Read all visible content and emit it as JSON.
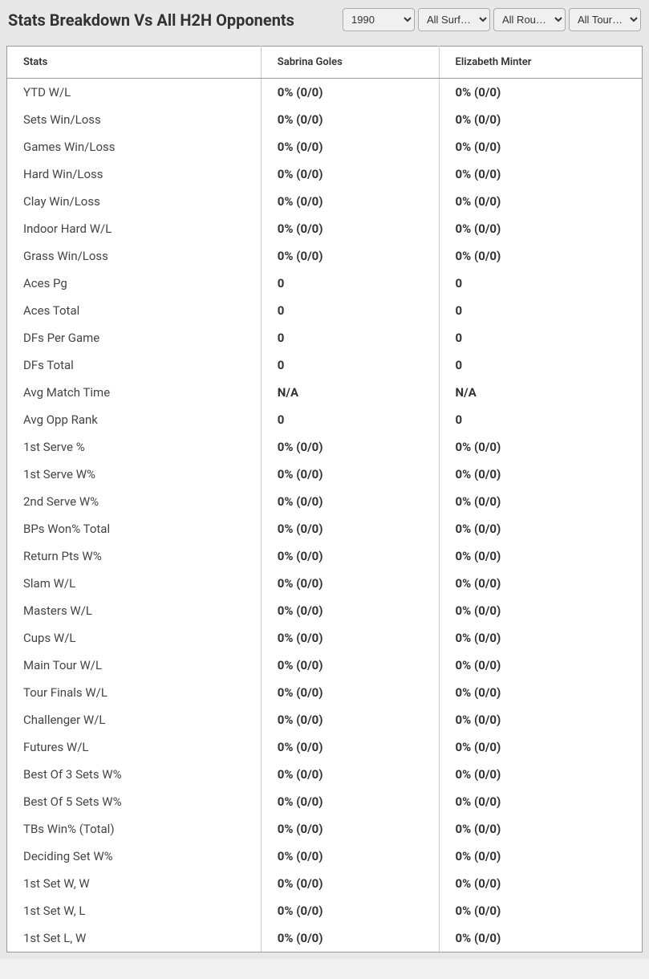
{
  "header": {
    "title": "Stats Breakdown Vs All H2H Opponents"
  },
  "filters": {
    "year": "1990",
    "surface": "All Surf…",
    "round": "All Rou…",
    "tour": "All Tour…"
  },
  "table": {
    "columns": {
      "stats": "Stats",
      "player1": "Sabrina Goles",
      "player2": "Elizabeth Minter"
    },
    "rows": [
      {
        "stat": "YTD W/L",
        "p1": "0% (0/0)",
        "p2": "0% (0/0)"
      },
      {
        "stat": "Sets Win/Loss",
        "p1": "0% (0/0)",
        "p2": "0% (0/0)"
      },
      {
        "stat": "Games Win/Loss",
        "p1": "0% (0/0)",
        "p2": "0% (0/0)"
      },
      {
        "stat": "Hard Win/Loss",
        "p1": "0% (0/0)",
        "p2": "0% (0/0)"
      },
      {
        "stat": "Clay Win/Loss",
        "p1": "0% (0/0)",
        "p2": "0% (0/0)"
      },
      {
        "stat": "Indoor Hard W/L",
        "p1": "0% (0/0)",
        "p2": "0% (0/0)"
      },
      {
        "stat": "Grass Win/Loss",
        "p1": "0% (0/0)",
        "p2": "0% (0/0)"
      },
      {
        "stat": "Aces Pg",
        "p1": "0",
        "p2": "0"
      },
      {
        "stat": "Aces Total",
        "p1": "0",
        "p2": "0"
      },
      {
        "stat": "DFs Per Game",
        "p1": "0",
        "p2": "0"
      },
      {
        "stat": "DFs Total",
        "p1": "0",
        "p2": "0"
      },
      {
        "stat": "Avg Match Time",
        "p1": "N/A",
        "p2": "N/A"
      },
      {
        "stat": "Avg Opp Rank",
        "p1": "0",
        "p2": "0"
      },
      {
        "stat": "1st Serve %",
        "p1": "0% (0/0)",
        "p2": "0% (0/0)"
      },
      {
        "stat": "1st Serve W%",
        "p1": "0% (0/0)",
        "p2": "0% (0/0)"
      },
      {
        "stat": "2nd Serve W%",
        "p1": "0% (0/0)",
        "p2": "0% (0/0)"
      },
      {
        "stat": "BPs Won% Total",
        "p1": "0% (0/0)",
        "p2": "0% (0/0)"
      },
      {
        "stat": "Return Pts W%",
        "p1": "0% (0/0)",
        "p2": "0% (0/0)"
      },
      {
        "stat": "Slam W/L",
        "p1": "0% (0/0)",
        "p2": "0% (0/0)"
      },
      {
        "stat": "Masters W/L",
        "p1": "0% (0/0)",
        "p2": "0% (0/0)"
      },
      {
        "stat": "Cups W/L",
        "p1": "0% (0/0)",
        "p2": "0% (0/0)"
      },
      {
        "stat": "Main Tour W/L",
        "p1": "0% (0/0)",
        "p2": "0% (0/0)"
      },
      {
        "stat": "Tour Finals W/L",
        "p1": "0% (0/0)",
        "p2": "0% (0/0)"
      },
      {
        "stat": "Challenger W/L",
        "p1": "0% (0/0)",
        "p2": "0% (0/0)"
      },
      {
        "stat": "Futures W/L",
        "p1": "0% (0/0)",
        "p2": "0% (0/0)"
      },
      {
        "stat": "Best Of 3 Sets W%",
        "p1": "0% (0/0)",
        "p2": "0% (0/0)"
      },
      {
        "stat": "Best Of 5 Sets W%",
        "p1": "0% (0/0)",
        "p2": "0% (0/0)"
      },
      {
        "stat": "TBs Win% (Total)",
        "p1": "0% (0/0)",
        "p2": "0% (0/0)"
      },
      {
        "stat": "Deciding Set W%",
        "p1": "0% (0/0)",
        "p2": "0% (0/0)"
      },
      {
        "stat": "1st Set W, W",
        "p1": "0% (0/0)",
        "p2": "0% (0/0)"
      },
      {
        "stat": "1st Set W, L",
        "p1": "0% (0/0)",
        "p2": "0% (0/0)"
      },
      {
        "stat": "1st Set L, W",
        "p1": "0% (0/0)",
        "p2": "0% (0/0)"
      }
    ]
  }
}
